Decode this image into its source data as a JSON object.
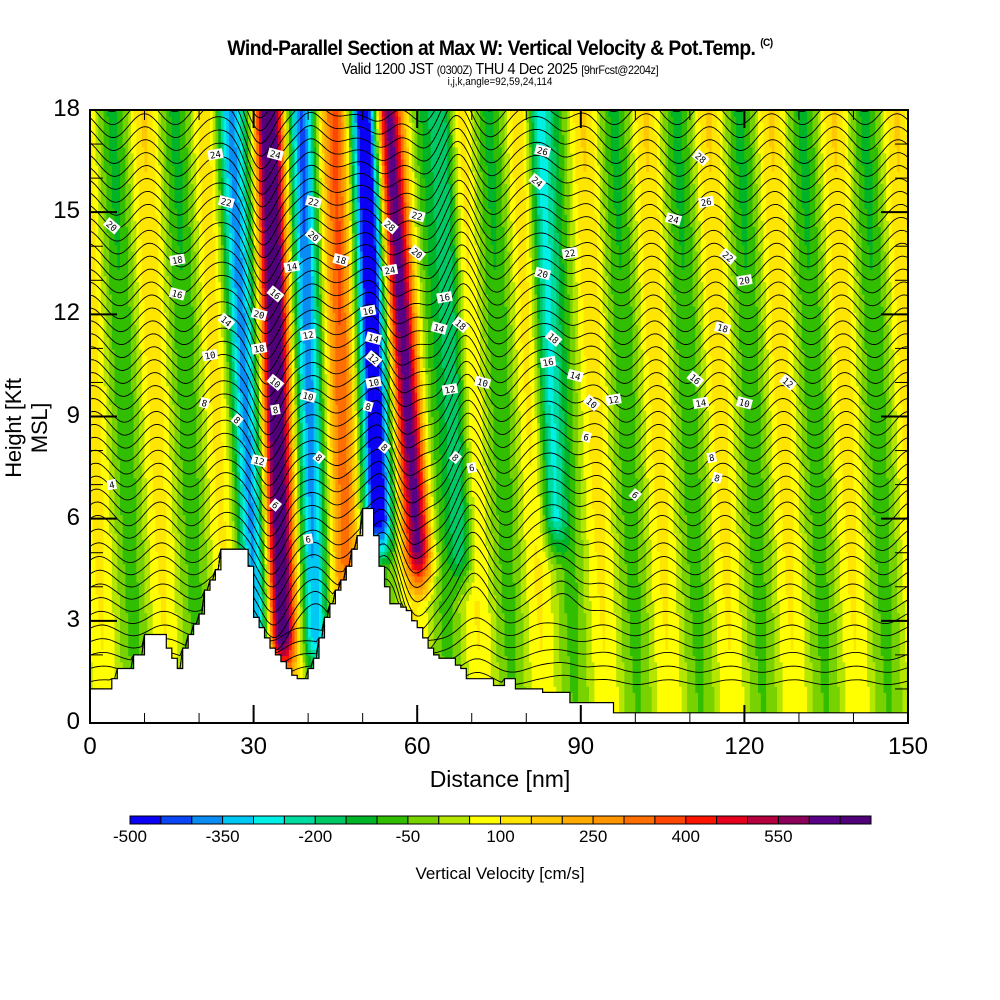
{
  "header": {
    "title": "Wind-Parallel Section at Max W: Vertical Velocity & Pot.Temp.",
    "copyright": "(C)",
    "valid_prefix": "Valid 1200 JST",
    "valid_utc": "(0300Z)",
    "valid_date": "THU 4 Dec 2025",
    "forecast": "[9hrFcst@2204z]",
    "grid_info": "i,j,k,angle=92,59,24,114"
  },
  "chart_data": {
    "type": "heatmap",
    "title": "Wind-Parallel Section at Max W: Vertical Velocity & Pot.Temp.",
    "xlabel": "Distance [nm]",
    "ylabel": "Height [Kft MSL]",
    "xlim": [
      0,
      150
    ],
    "ylim": [
      0,
      18
    ],
    "x_ticks": [
      "0",
      "30",
      "60",
      "90",
      "120",
      "150"
    ],
    "y_ticks": [
      "0",
      "3",
      "6",
      "9",
      "12",
      "15",
      "18"
    ],
    "x_minor_step": 10,
    "y_minor_step": 1,
    "colorbar": {
      "label": "Vertical Velocity [cm/s]",
      "min": -500,
      "max": 700,
      "step": 50,
      "tick_labels": [
        "-500",
        "-350",
        "-200",
        "-50",
        "100",
        "250",
        "400",
        "550"
      ],
      "colors": [
        "#0a00f5",
        "#0a46f5",
        "#0a8cf5",
        "#00c8f5",
        "#00f0e6",
        "#00dca0",
        "#00c864",
        "#00b428",
        "#32be00",
        "#78d200",
        "#b4e600",
        "#ffff00",
        "#ffe600",
        "#ffc800",
        "#ffaa00",
        "#ff9600",
        "#ff6e00",
        "#ff4600",
        "#ff1400",
        "#e6001e",
        "#b4003c",
        "#8c005a",
        "#5a0087",
        "#500078"
      ]
    },
    "terrain_profile_kft": {
      "x_nm": [
        0,
        1,
        4,
        5,
        8,
        10,
        13,
        14,
        15,
        16,
        17,
        18,
        19,
        20,
        21,
        22,
        23,
        24,
        27,
        28,
        29,
        30,
        31,
        32,
        33,
        34,
        35,
        36,
        37,
        38,
        39,
        40,
        41,
        42,
        43,
        44,
        45,
        46,
        47,
        48,
        49,
        50,
        51,
        52,
        53,
        54,
        55,
        56,
        57,
        58,
        59,
        60,
        61,
        62,
        63,
        64,
        65,
        66,
        67,
        68,
        69,
        70,
        72,
        74,
        76,
        78,
        80,
        83,
        88,
        92,
        96,
        100,
        150
      ],
      "height": [
        1.0,
        1.0,
        1.3,
        1.6,
        2.0,
        2.6,
        2.6,
        2.2,
        1.9,
        1.6,
        2.2,
        2.6,
        2.9,
        3.2,
        3.9,
        4.2,
        4.5,
        5.1,
        5.1,
        5.1,
        4.6,
        3.1,
        2.8,
        2.5,
        2.2,
        2.0,
        1.8,
        1.6,
        1.4,
        1.3,
        1.3,
        1.6,
        1.9,
        2.5,
        3.1,
        3.5,
        3.9,
        4.2,
        4.6,
        5.1,
        5.5,
        6.3,
        6.3,
        5.5,
        4.6,
        4.0,
        3.5,
        3.5,
        3.4,
        3.3,
        3.0,
        2.8,
        2.5,
        2.2,
        2.0,
        1.9,
        1.9,
        1.9,
        1.7,
        1.6,
        1.3,
        1.3,
        1.3,
        1.1,
        1.3,
        1.0,
        1.0,
        0.9,
        0.6,
        0.6,
        0.3,
        0.3,
        0.3
      ]
    },
    "wave_components": [
      {
        "center_nm": 34,
        "amplitude_cms": 650,
        "halfwidth_nm": 2.4,
        "tilt_nm_per_kft": -0.15,
        "z_min_kft": 2.5,
        "z_max_kft": 18
      },
      {
        "center_nm": 28,
        "amplitude_cms": -300,
        "halfwidth_nm": 2.6,
        "tilt_nm_per_kft": -0.35,
        "z_min_kft": 2.5,
        "z_max_kft": 18
      },
      {
        "center_nm": 40,
        "amplitude_cms": -300,
        "halfwidth_nm": 2.2,
        "tilt_nm_per_kft": -0.15,
        "z_min_kft": 2.5,
        "z_max_kft": 18
      },
      {
        "center_nm": 52,
        "amplitude_cms": -480,
        "halfwidth_nm": 2.6,
        "tilt_nm_per_kft": -0.2,
        "z_min_kft": 6,
        "z_max_kft": 18
      },
      {
        "center_nm": 58,
        "amplitude_cms": 520,
        "halfwidth_nm": 2.4,
        "tilt_nm_per_kft": -0.45,
        "z_min_kft": 5,
        "z_max_kft": 18
      },
      {
        "center_nm": 46,
        "amplitude_cms": 220,
        "halfwidth_nm": 2.6,
        "tilt_nm_per_kft": -0.1,
        "z_min_kft": 2,
        "z_max_kft": 18
      },
      {
        "center_nm": 67,
        "amplitude_cms": -220,
        "halfwidth_nm": 2.2,
        "tilt_nm_per_kft": -0.25,
        "z_min_kft": 5,
        "z_max_kft": 18
      },
      {
        "center_nm": 84,
        "amplitude_cms": -250,
        "halfwidth_nm": 2.2,
        "tilt_nm_per_kft": -0.25,
        "z_min_kft": 6,
        "z_max_kft": 18
      }
    ],
    "background_wave": {
      "wavelength_nm": 11.5,
      "amplitude_cms": 120,
      "offset_cms": 20
    },
    "contour_field": "Potential Temperature",
    "contour_levels": [
      4,
      6,
      8,
      10,
      12,
      14,
      16,
      18,
      20,
      22,
      24,
      26,
      28
    ],
    "contour_labels": [
      {
        "text": "24",
        "x_nm": 23,
        "z_kft": 16.7
      },
      {
        "text": "22",
        "x_nm": 25,
        "z_kft": 15.3
      },
      {
        "text": "20",
        "x_nm": 4,
        "z_kft": 14.6
      },
      {
        "text": "18",
        "x_nm": 16,
        "z_kft": 13.6
      },
      {
        "text": "16",
        "x_nm": 16,
        "z_kft": 12.6
      },
      {
        "text": "14",
        "x_nm": 25,
        "z_kft": 11.8
      },
      {
        "text": "10",
        "x_nm": 22,
        "z_kft": 10.8
      },
      {
        "text": "8",
        "x_nm": 21,
        "z_kft": 9.4
      },
      {
        "text": "8",
        "x_nm": 27,
        "z_kft": 8.9
      },
      {
        "text": "4",
        "x_nm": 4,
        "z_kft": 7.0
      },
      {
        "text": "24",
        "x_nm": 34,
        "z_kft": 16.7
      },
      {
        "text": "16",
        "x_nm": 34,
        "z_kft": 12.6
      },
      {
        "text": "18",
        "x_nm": 31,
        "z_kft": 11.0
      },
      {
        "text": "20",
        "x_nm": 31,
        "z_kft": 12.0
      },
      {
        "text": "10",
        "x_nm": 34,
        "z_kft": 10.0
      },
      {
        "text": "8",
        "x_nm": 34,
        "z_kft": 9.2
      },
      {
        "text": "12",
        "x_nm": 31,
        "z_kft": 7.7
      },
      {
        "text": "6",
        "x_nm": 34,
        "z_kft": 6.4
      },
      {
        "text": "14",
        "x_nm": 37,
        "z_kft": 13.4
      },
      {
        "text": "22",
        "x_nm": 41,
        "z_kft": 15.3
      },
      {
        "text": "20",
        "x_nm": 41,
        "z_kft": 14.3
      },
      {
        "text": "12",
        "x_nm": 40,
        "z_kft": 11.4
      },
      {
        "text": "10",
        "x_nm": 40,
        "z_kft": 9.6
      },
      {
        "text": "8",
        "x_nm": 42,
        "z_kft": 7.8
      },
      {
        "text": "6",
        "x_nm": 40,
        "z_kft": 5.4
      },
      {
        "text": "18",
        "x_nm": 46,
        "z_kft": 13.6
      },
      {
        "text": "28",
        "x_nm": 55,
        "z_kft": 14.6
      },
      {
        "text": "24",
        "x_nm": 55,
        "z_kft": 13.3
      },
      {
        "text": "22",
        "x_nm": 60,
        "z_kft": 14.9
      },
      {
        "text": "20",
        "x_nm": 60,
        "z_kft": 13.8
      },
      {
        "text": "16",
        "x_nm": 51,
        "z_kft": 12.1
      },
      {
        "text": "14",
        "x_nm": 52,
        "z_kft": 11.3
      },
      {
        "text": "12",
        "x_nm": 52,
        "z_kft": 10.7
      },
      {
        "text": "10",
        "x_nm": 52,
        "z_kft": 10.0
      },
      {
        "text": "8",
        "x_nm": 51,
        "z_kft": 9.3
      },
      {
        "text": "8",
        "x_nm": 54,
        "z_kft": 8.1
      },
      {
        "text": "16",
        "x_nm": 65,
        "z_kft": 12.5
      },
      {
        "text": "14",
        "x_nm": 64,
        "z_kft": 11.6
      },
      {
        "text": "18",
        "x_nm": 68,
        "z_kft": 11.7
      },
      {
        "text": "12",
        "x_nm": 66,
        "z_kft": 9.8
      },
      {
        "text": "10",
        "x_nm": 72,
        "z_kft": 10.0
      },
      {
        "text": "8",
        "x_nm": 67,
        "z_kft": 7.8
      },
      {
        "text": "6",
        "x_nm": 70,
        "z_kft": 7.5
      },
      {
        "text": "26",
        "x_nm": 83,
        "z_kft": 16.8
      },
      {
        "text": "24",
        "x_nm": 82,
        "z_kft": 15.9
      },
      {
        "text": "22",
        "x_nm": 88,
        "z_kft": 13.8
      },
      {
        "text": "20",
        "x_nm": 83,
        "z_kft": 13.2
      },
      {
        "text": "18",
        "x_nm": 85,
        "z_kft": 11.3
      },
      {
        "text": "16",
        "x_nm": 84,
        "z_kft": 10.6
      },
      {
        "text": "14",
        "x_nm": 89,
        "z_kft": 10.2
      },
      {
        "text": "10",
        "x_nm": 92,
        "z_kft": 9.4
      },
      {
        "text": "12",
        "x_nm": 96,
        "z_kft": 9.5
      },
      {
        "text": "6",
        "x_nm": 91,
        "z_kft": 8.4
      },
      {
        "text": "28",
        "x_nm": 112,
        "z_kft": 16.6
      },
      {
        "text": "26",
        "x_nm": 113,
        "z_kft": 15.3
      },
      {
        "text": "24",
        "x_nm": 107,
        "z_kft": 14.8
      },
      {
        "text": "22",
        "x_nm": 117,
        "z_kft": 13.7
      },
      {
        "text": "20",
        "x_nm": 120,
        "z_kft": 13.0
      },
      {
        "text": "18",
        "x_nm": 116,
        "z_kft": 11.6
      },
      {
        "text": "16",
        "x_nm": 111,
        "z_kft": 10.1
      },
      {
        "text": "14",
        "x_nm": 112,
        "z_kft": 9.4
      },
      {
        "text": "10",
        "x_nm": 120,
        "z_kft": 9.4
      },
      {
        "text": "12",
        "x_nm": 128,
        "z_kft": 10.0
      },
      {
        "text": "8",
        "x_nm": 114,
        "z_kft": 7.8
      },
      {
        "text": "8",
        "x_nm": 115,
        "z_kft": 7.2
      },
      {
        "text": "6",
        "x_nm": 100,
        "z_kft": 6.7
      }
    ]
  }
}
